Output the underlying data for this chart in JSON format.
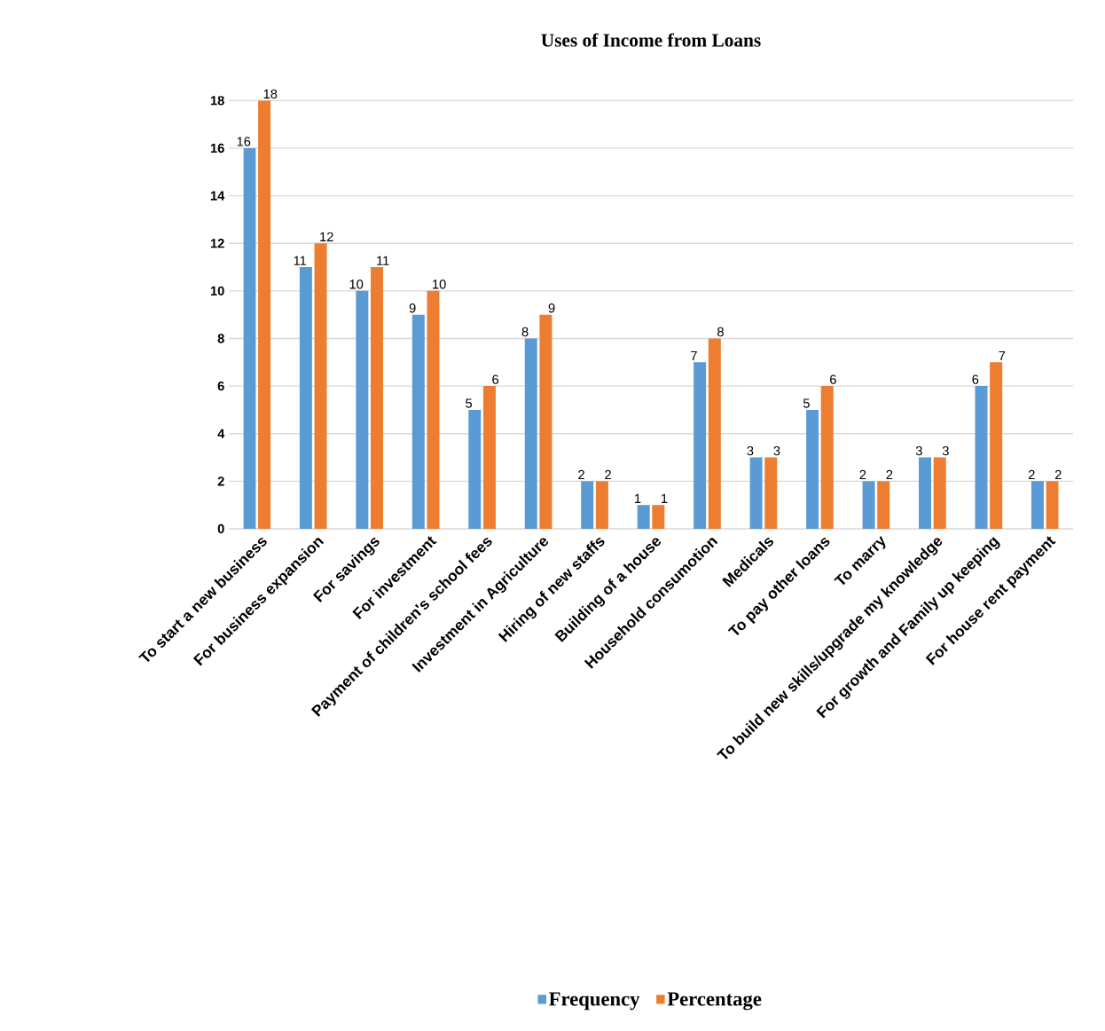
{
  "chart_data": {
    "type": "bar",
    "title": "Uses of Income from Loans",
    "categories": [
      "To start a new business",
      "For business expansion",
      "For savings",
      "For investment",
      "Payment of children's school fees",
      "Investment in Agriculture",
      "Hiring of new staffs",
      "Building of a house",
      "Household consumotion",
      "Medicals",
      "To pay other loans",
      "To marry",
      "To build new skills/upgrade my knowledge",
      "For growth and Family up keeping",
      "For house rent payment"
    ],
    "series": [
      {
        "name": "Frequency",
        "color": "#5b9bd5",
        "values": [
          16,
          11,
          10,
          9,
          5,
          8,
          2,
          1,
          7,
          3,
          5,
          2,
          3,
          6,
          2
        ]
      },
      {
        "name": "Percentage",
        "color": "#ed7d31",
        "values": [
          18,
          12,
          11,
          10,
          6,
          9,
          2,
          1,
          8,
          3,
          6,
          2,
          3,
          7,
          2
        ]
      }
    ],
    "ylim": [
      0,
      18
    ],
    "yticks": [
      0,
      2,
      4,
      6,
      8,
      10,
      12,
      14,
      16,
      18
    ],
    "grid": "y",
    "legend": "bottom",
    "data_labels": true
  }
}
